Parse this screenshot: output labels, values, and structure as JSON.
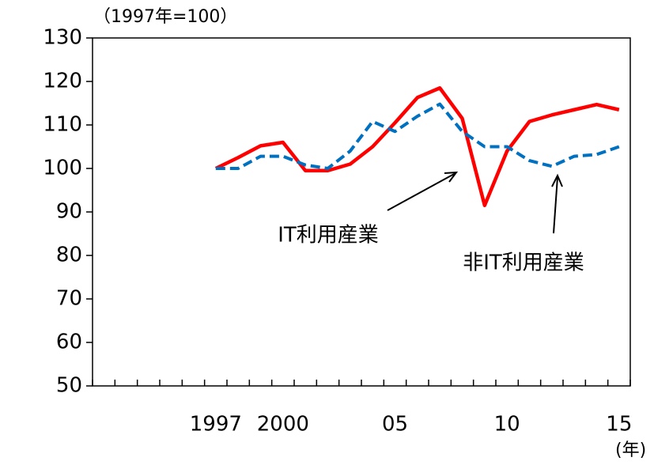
{
  "chart_data": {
    "type": "line",
    "unit_label": "（1997年=100）",
    "x_unit_label": "(年)",
    "categories": [
      null,
      null,
      null,
      null,
      null,
      "1997",
      null,
      null,
      "2000",
      null,
      null,
      null,
      null,
      "05",
      null,
      null,
      null,
      null,
      "10",
      null,
      null,
      null,
      null,
      "15"
    ],
    "series": [
      {
        "name": "IT利用産業",
        "color": "#ff0000",
        "dash": false,
        "values": [
          null,
          null,
          null,
          null,
          null,
          100,
          102.5,
          105.2,
          106,
          99.5,
          99.5,
          101,
          105,
          110.5,
          116.3,
          118.5,
          111.5,
          91.5,
          104,
          110.8,
          112.3,
          113.5,
          114.7,
          113.5
        ]
      },
      {
        "name": "非IT利用産業",
        "color": "#0070c0",
        "dash": true,
        "values": [
          null,
          null,
          null,
          null,
          null,
          100,
          100,
          102.8,
          102.8,
          100.8,
          100,
          104,
          110.8,
          108.5,
          112,
          114.8,
          108.5,
          105,
          105,
          101.8,
          100.5,
          102.8,
          103.2,
          105
        ]
      }
    ],
    "ylim": [
      50,
      130
    ],
    "yticks": [
      50,
      60,
      70,
      80,
      90,
      100,
      110,
      120,
      130
    ]
  }
}
